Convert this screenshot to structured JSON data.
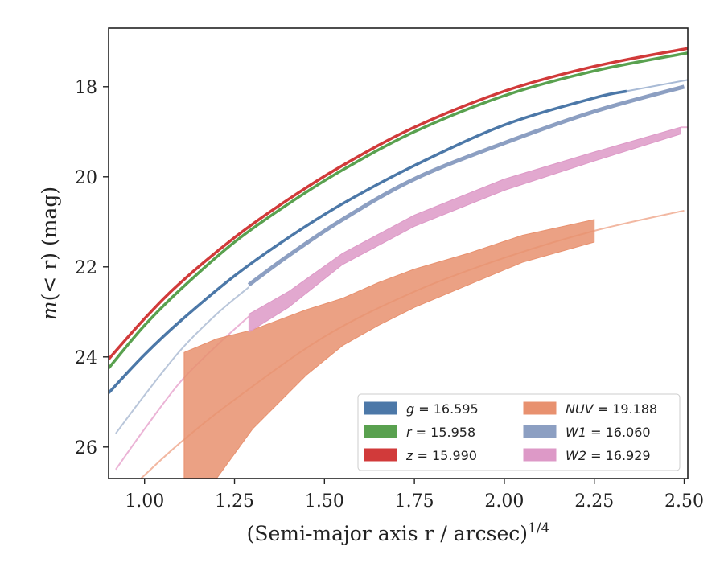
{
  "chart_data": {
    "type": "line",
    "xlabel": "(Semi-major axis r / arcsec)",
    "xlabel_sup": "1/4",
    "ylabel_prefix": "m",
    "ylabel_suffix": "(< r) (mag)",
    "xlim": [
      0.9,
      2.51
    ],
    "ylim": [
      26.7,
      16.7
    ],
    "y_inverted": true,
    "xticks": [
      1.0,
      1.25,
      1.5,
      1.75,
      2.0,
      2.25,
      2.5
    ],
    "xtick_labels": [
      "1.00",
      "1.25",
      "1.50",
      "1.75",
      "2.00",
      "2.25",
      "2.50"
    ],
    "yticks": [
      18,
      20,
      22,
      24,
      26
    ],
    "ytick_labels": [
      "18",
      "20",
      "22",
      "24",
      "26"
    ],
    "grid": false,
    "legend_position": "lower-right",
    "series": [
      {
        "name": "g = 16.595",
        "color": "#4c78a8",
        "kind": "line",
        "width": 3.5,
        "x": [
          0.9,
          1.0,
          1.1,
          1.25,
          1.4,
          1.55,
          1.75,
          2.0,
          2.25,
          2.34
        ],
        "y": [
          24.8,
          23.95,
          23.2,
          22.2,
          21.35,
          20.6,
          19.75,
          18.85,
          18.25,
          18.1
        ]
      },
      {
        "name": "r = 15.958",
        "color": "#59a14f",
        "kind": "line",
        "width": 3.5,
        "x": [
          0.9,
          1.0,
          1.1,
          1.25,
          1.4,
          1.55,
          1.75,
          2.0,
          2.25,
          2.51
        ],
        "y": [
          24.25,
          23.3,
          22.5,
          21.45,
          20.6,
          19.85,
          19.0,
          18.2,
          17.65,
          17.25
        ]
      },
      {
        "name": "z = 15.990",
        "color": "#d13a3a",
        "kind": "line",
        "width": 3.5,
        "x": [
          0.9,
          1.0,
          1.1,
          1.25,
          1.4,
          1.55,
          1.75,
          2.0,
          2.25,
          2.51
        ],
        "y": [
          24.05,
          23.15,
          22.35,
          21.35,
          20.5,
          19.75,
          18.9,
          18.1,
          17.55,
          17.15
        ]
      },
      {
        "name": "NUV = 19.188",
        "color": "#e8916f",
        "kind": "band",
        "x": [
          1.11,
          1.2,
          1.3,
          1.45,
          1.55,
          1.65,
          1.75,
          1.9,
          2.05,
          2.25
        ],
        "y_upper": [
          23.9,
          23.6,
          23.4,
          22.95,
          22.7,
          22.35,
          22.05,
          21.7,
          21.3,
          20.95
        ],
        "y_lower": [
          26.7,
          26.7,
          25.6,
          24.4,
          23.75,
          23.3,
          22.9,
          22.4,
          21.9,
          21.45
        ]
      },
      {
        "name": "W1 = 16.060",
        "color": "#8c9fc2",
        "kind": "line",
        "width": 5,
        "x": [
          1.29,
          1.4,
          1.55,
          1.75,
          2.0,
          2.25,
          2.5
        ],
        "y": [
          22.4,
          21.75,
          20.95,
          20.05,
          19.25,
          18.55,
          18.0
        ]
      },
      {
        "name": "W2 = 16.929",
        "color": "#dd99c7",
        "kind": "band",
        "x": [
          1.29,
          1.4,
          1.55,
          1.75,
          2.0,
          2.25,
          2.49
        ],
        "y_upper": [
          23.05,
          22.55,
          21.7,
          20.85,
          20.05,
          19.45,
          18.9
        ],
        "y_lower": [
          23.45,
          22.9,
          21.95,
          21.1,
          20.3,
          19.65,
          19.05
        ]
      }
    ],
    "faint_curves": [
      {
        "color": "#b9c6da",
        "x": [
          0.92,
          1.0,
          1.1,
          1.2,
          1.29
        ],
        "y": [
          25.7,
          24.85,
          23.85,
          23.05,
          22.45
        ]
      },
      {
        "color": "#ebb4d6",
        "x": [
          0.92,
          1.0,
          1.1,
          1.2,
          1.29
        ],
        "y": [
          26.5,
          25.6,
          24.55,
          23.75,
          23.1
        ]
      },
      {
        "color": "#f2b8a2",
        "x": [
          0.99,
          1.1,
          1.25,
          1.5,
          1.75,
          2.0,
          2.25,
          2.5
        ],
        "y": [
          26.7,
          25.9,
          24.95,
          23.55,
          22.55,
          21.8,
          21.2,
          20.75
        ]
      },
      {
        "color": "#9bc896",
        "x": [
          2.3,
          2.51
        ],
        "y": [
          17.55,
          17.25
        ]
      },
      {
        "color": "#a9bbd6",
        "x": [
          2.34,
          2.51
        ],
        "y": [
          18.1,
          17.85
        ]
      },
      {
        "color": "#ebb4d6",
        "x": [
          2.49,
          2.51
        ],
        "y": [
          18.9,
          18.9
        ]
      }
    ],
    "legend": [
      {
        "var": "g",
        "value": "16.595",
        "color": "#4c78a8"
      },
      {
        "var": "r",
        "value": "15.958",
        "color": "#59a14f"
      },
      {
        "var": "z",
        "value": "15.990",
        "color": "#d13a3a"
      },
      {
        "var": "NUV",
        "value": "19.188",
        "color": "#e8916f"
      },
      {
        "var": "W1",
        "value": "16.060",
        "color": "#8c9fc2"
      },
      {
        "var": "W2",
        "value": "16.929",
        "color": "#dd99c7"
      }
    ]
  }
}
